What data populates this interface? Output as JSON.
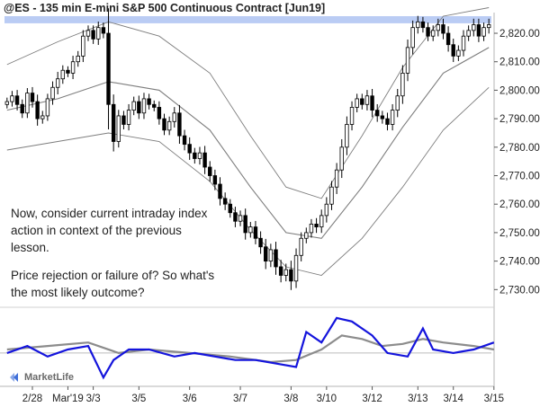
{
  "chart_data": {
    "type": "candlestick",
    "title": "@ES - 135 min  E-mini S&P 500 Continuous Contract [Jun19]",
    "y_ticks": [
      "2,820.00",
      "2,810.00",
      "2,800.00",
      "2,790.00",
      "2,780.00",
      "2,770.00",
      "2,760.00",
      "2,750.00",
      "2,740.00",
      "2,730.00"
    ],
    "y_tick_values": [
      2820,
      2810,
      2800,
      2790,
      2780,
      2770,
      2760,
      2750,
      2740,
      2730
    ],
    "ylim": [
      2726,
      2826
    ],
    "x_ticks": [
      "2/28",
      "Mar'19",
      "3/3",
      "3/5",
      "3/6",
      "3/7",
      "3/8",
      "3/10",
      "3/12",
      "3/13",
      "3/14",
      "3/15"
    ],
    "x_tick_bars": [
      5,
      12,
      17,
      26,
      36,
      46,
      56,
      63,
      72,
      81,
      88,
      96
    ],
    "resistance_band": [
      2823.5,
      2826
    ],
    "close": [
      2796,
      2798,
      2795,
      2792,
      2799,
      2796,
      2790,
      2791,
      2797,
      2801,
      2804,
      2807,
      2806,
      2810,
      2812,
      2819,
      2821,
      2818,
      2822,
      2820,
      2795,
      2782,
      2791,
      2788,
      2793,
      2796,
      2792,
      2797,
      2795,
      2794,
      2790,
      2786,
      2789,
      2792,
      2784,
      2781,
      2778,
      2776,
      2778,
      2773,
      2770,
      2767,
      2762,
      2760,
      2757,
      2754,
      2756,
      2750,
      2752,
      2748,
      2745,
      2740,
      2744,
      2738,
      2735,
      2737,
      2733,
      2742,
      2748,
      2750,
      2753,
      2752,
      2756,
      2760,
      2766,
      2772,
      2780,
      2788,
      2794,
      2797,
      2795,
      2798,
      2793,
      2791,
      2790,
      2788,
      2793,
      2798,
      2806,
      2815,
      2822,
      2824,
      2822,
      2819,
      2821,
      2823,
      2820,
      2816,
      2812,
      2814,
      2819,
      2821,
      2823,
      2819,
      2822,
      2823
    ],
    "ranges": [
      4,
      5,
      6,
      5,
      5,
      6,
      7,
      5,
      5,
      6,
      7,
      5,
      4,
      6,
      5,
      6,
      5,
      5,
      6,
      5,
      25,
      10,
      6,
      5,
      6,
      5,
      6,
      6,
      5,
      4,
      6,
      5,
      5,
      6,
      8,
      6,
      7,
      5,
      6,
      7,
      6,
      6,
      7,
      6,
      5,
      6,
      5,
      7,
      5,
      6,
      7,
      8,
      6,
      8,
      7,
      6,
      9,
      7,
      6,
      5,
      5,
      6,
      6,
      7,
      6,
      7,
      8,
      8,
      6,
      5,
      5,
      6,
      7,
      6,
      5,
      6,
      6,
      7,
      8,
      8,
      7,
      6,
      5,
      5,
      5,
      6,
      6,
      7,
      6,
      5,
      6,
      5,
      6,
      6,
      5,
      6
    ],
    "bands": {
      "mid": {
        "x": [
          0,
          10,
          20,
          30,
          40,
          48,
          55,
          62,
          70,
          78,
          86,
          95
        ],
        "y": [
          2793,
          2797,
          2803,
          2800,
          2786,
          2766,
          2750,
          2748,
          2766,
          2787,
          2806,
          2815
        ]
      },
      "upper": {
        "x": [
          0,
          10,
          20,
          30,
          40,
          48,
          55,
          62,
          70,
          78,
          86,
          95
        ],
        "y": [
          2809,
          2817,
          2824,
          2819,
          2806,
          2784,
          2766,
          2762,
          2784,
          2808,
          2826,
          2829
        ]
      },
      "lower": {
        "x": [
          0,
          10,
          20,
          30,
          40,
          48,
          55,
          62,
          70,
          78,
          86,
          95
        ],
        "y": [
          2779,
          2782,
          2785,
          2782,
          2768,
          2751,
          2738,
          2735,
          2748,
          2766,
          2786,
          2801
        ]
      }
    },
    "indicator": {
      "fast_x": [
        0,
        4,
        8,
        12,
        16,
        19,
        21,
        24,
        28,
        33,
        37,
        41,
        45,
        49,
        53,
        57,
        59,
        62,
        65,
        68,
        72,
        75,
        79,
        82,
        84,
        88,
        92,
        96
      ],
      "fast": [
        0.45,
        0.55,
        0.4,
        0.5,
        0.55,
        0.1,
        0.35,
        0.5,
        0.5,
        0.4,
        0.45,
        0.4,
        0.35,
        0.35,
        0.3,
        0.25,
        0.75,
        0.6,
        0.95,
        0.9,
        0.7,
        0.45,
        0.4,
        0.8,
        0.5,
        0.45,
        0.5,
        0.6
      ],
      "slow_x": [
        0,
        8,
        16,
        22,
        28,
        36,
        44,
        52,
        57,
        62,
        66,
        70,
        74,
        78,
        82,
        86,
        92,
        96
      ],
      "slow": [
        0.5,
        0.55,
        0.6,
        0.45,
        0.5,
        0.45,
        0.4,
        0.32,
        0.35,
        0.5,
        0.7,
        0.65,
        0.55,
        0.58,
        0.65,
        0.6,
        0.55,
        0.5
      ]
    },
    "colors": {
      "candle": "#000000",
      "resistance": "#aec3f2",
      "bands": "#7d7d7d",
      "indicator_fast": "#1414dc",
      "indicator_slow": "#8c8c8c",
      "axis": "#b4b4b4"
    }
  },
  "annotation": {
    "line1": "Now, consider current intraday index",
    "line2": "action in context of the previous",
    "line3": "lesson.",
    "line4": "Price rejection or failure of? So what's",
    "line5": "the most likely outcome?"
  },
  "logo": {
    "text": "MarketLife",
    "icon": "marketlife-logo-icon"
  }
}
